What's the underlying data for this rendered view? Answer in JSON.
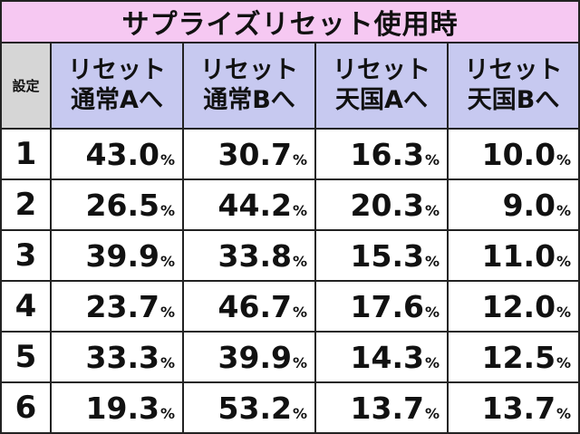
{
  "title": "サプライズリセット使用時",
  "setting_header": "設定",
  "columns": [
    {
      "line1": "リセット",
      "line2": "通常Aへ"
    },
    {
      "line1": "リセット",
      "line2": "通常Bへ"
    },
    {
      "line1": "リセット",
      "line2": "天国Aへ"
    },
    {
      "line1": "リセット",
      "line2": "天国Bへ"
    }
  ],
  "percent_unit": "%",
  "rows": [
    {
      "setting": "1",
      "values": [
        "43.0",
        "30.7",
        "16.3",
        "10.0"
      ]
    },
    {
      "setting": "2",
      "values": [
        "26.5",
        "44.2",
        "20.3",
        "9.0"
      ]
    },
    {
      "setting": "3",
      "values": [
        "39.9",
        "33.8",
        "15.3",
        "11.0"
      ]
    },
    {
      "setting": "4",
      "values": [
        "23.7",
        "46.7",
        "17.6",
        "12.0"
      ]
    },
    {
      "setting": "5",
      "values": [
        "33.3",
        "39.9",
        "14.3",
        "12.5"
      ]
    },
    {
      "setting": "6",
      "values": [
        "19.3",
        "53.2",
        "13.7",
        "13.7"
      ]
    }
  ],
  "colors": {
    "title_bg": "#f6c8f2",
    "column_header_bg": "#c7c9f0",
    "setting_header_bg": "#d6d6d6",
    "border": "#222222"
  }
}
